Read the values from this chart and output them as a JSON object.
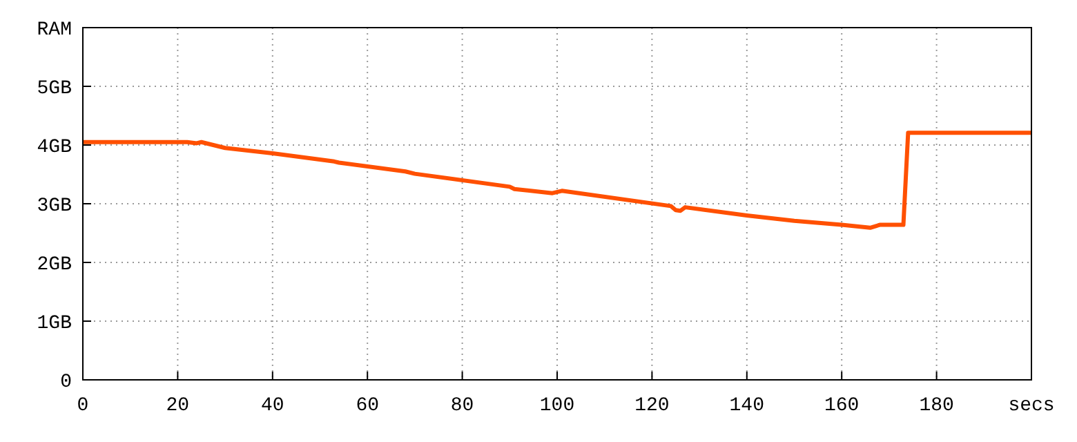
{
  "chart_data": {
    "type": "line",
    "xlabel": "secs",
    "ylabel": "RAM",
    "xlim": [
      0,
      200
    ],
    "ylim": [
      0,
      6
    ],
    "xticks": [
      0,
      20,
      40,
      60,
      80,
      100,
      120,
      140,
      160,
      180
    ],
    "yticks": [
      {
        "value": 0,
        "label": "0"
      },
      {
        "value": 1,
        "label": "1GB"
      },
      {
        "value": 2,
        "label": "2GB"
      },
      {
        "value": 3,
        "label": "3GB"
      },
      {
        "value": 4,
        "label": "4GB"
      },
      {
        "value": 5,
        "label": "5GB"
      }
    ],
    "grid": true,
    "line_style": "solid",
    "series": [
      {
        "color": "#ff5000",
        "x": [
          0,
          22,
          24,
          25,
          30,
          40,
          53,
          54,
          68,
          70,
          90,
          91,
          99,
          101,
          124,
          125,
          126,
          127,
          140,
          150,
          160,
          166,
          168,
          173,
          174,
          200
        ],
        "values": [
          4.05,
          4.05,
          4.03,
          4.05,
          3.95,
          3.86,
          3.72,
          3.7,
          3.55,
          3.51,
          3.29,
          3.25,
          3.18,
          3.22,
          2.96,
          2.89,
          2.88,
          2.94,
          2.8,
          2.71,
          2.64,
          2.59,
          2.64,
          2.64,
          4.21,
          4.21
        ]
      }
    ]
  }
}
